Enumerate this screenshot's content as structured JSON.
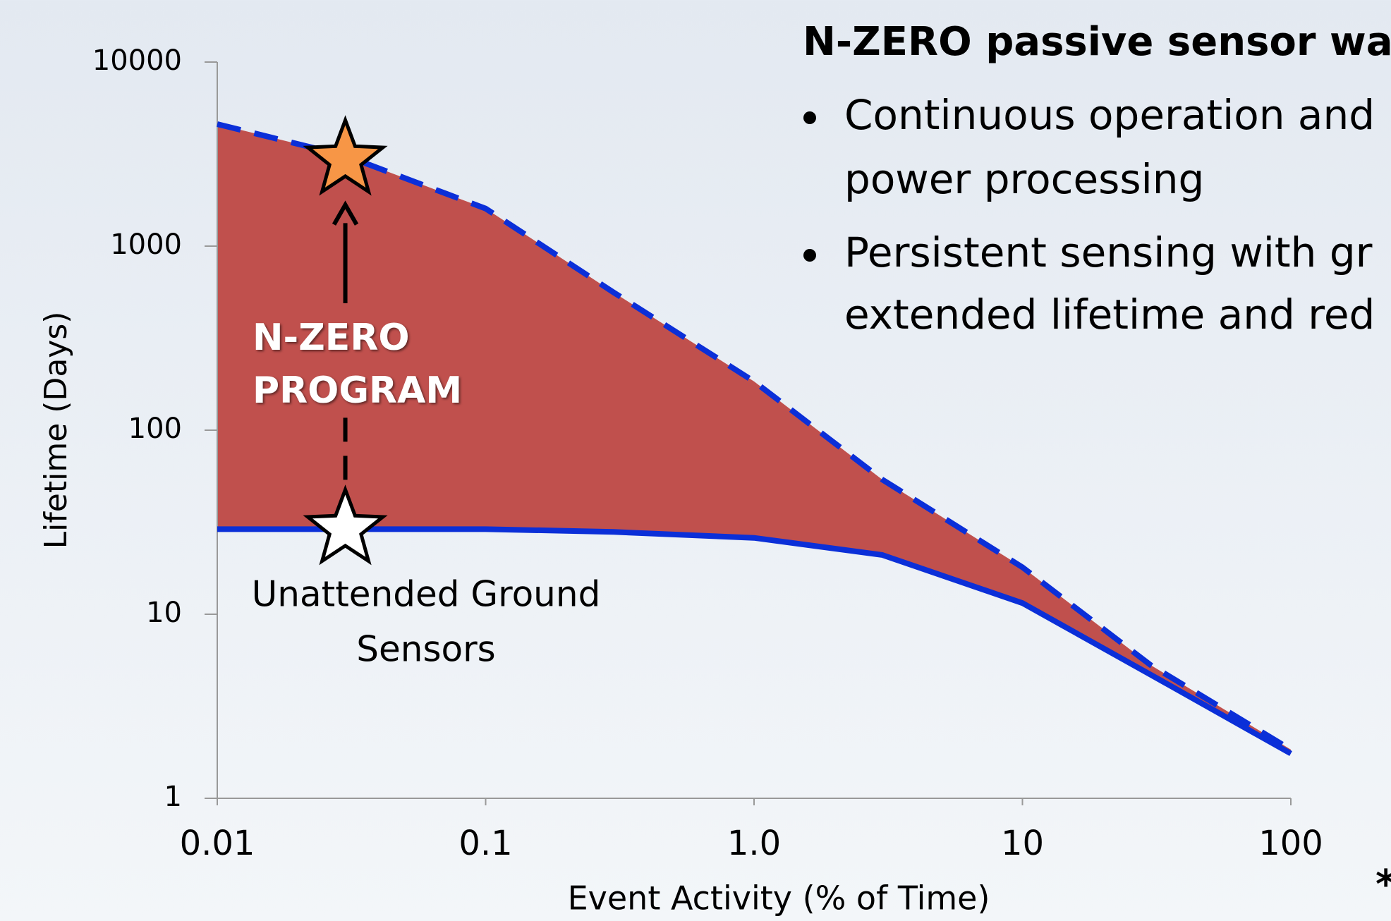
{
  "chart_data": {
    "type": "line",
    "xlabel": "Event Activity (% of Time)",
    "ylabel": "Lifetime (Days)",
    "x": [
      0.01,
      0.03,
      0.1,
      0.3,
      1,
      3,
      10,
      30,
      100
    ],
    "series": [
      {
        "name": "N-ZERO",
        "color": "#0b2fd8",
        "dash": true,
        "values": [
          4600,
          3100,
          1600,
          560,
          184,
          54,
          18,
          5.3,
          1.84
        ]
      },
      {
        "name": "Unattended Ground Sensors",
        "color": "#0b2fd8",
        "dash": false,
        "values": [
          29,
          29,
          29,
          28,
          26,
          21,
          11.5,
          4.7,
          1.75
        ]
      }
    ],
    "fill_color": "#c0504d",
    "xlog": true,
    "ylog": true,
    "xlim": [
      0.01,
      100
    ],
    "ylim": [
      1,
      10000
    ],
    "xticks": [
      {
        "value": 0.01,
        "label": "0.01"
      },
      0.1,
      {
        "value": 1,
        "label": "1.0"
      },
      10,
      100
    ],
    "yticks": [
      1,
      10,
      100,
      1000,
      10000
    ],
    "markers": [
      {
        "x": 0.03,
        "y": 2950,
        "color": "#f79646"
      },
      {
        "x": 0.03,
        "y": 29,
        "color": "#ffffff"
      }
    ],
    "annotations": {
      "program": [
        "N-ZERO",
        "PROGRAM"
      ],
      "sensors": [
        "Unattended Ground",
        "Sensors"
      ]
    }
  },
  "panel": {
    "heading": "N-ZERO passive sensor wak",
    "bullets": [
      [
        "Continuous operation and",
        "power processing"
      ],
      [
        "Persistent sensing with gr",
        "extended lifetime and red"
      ]
    ],
    "footnote": "*"
  }
}
